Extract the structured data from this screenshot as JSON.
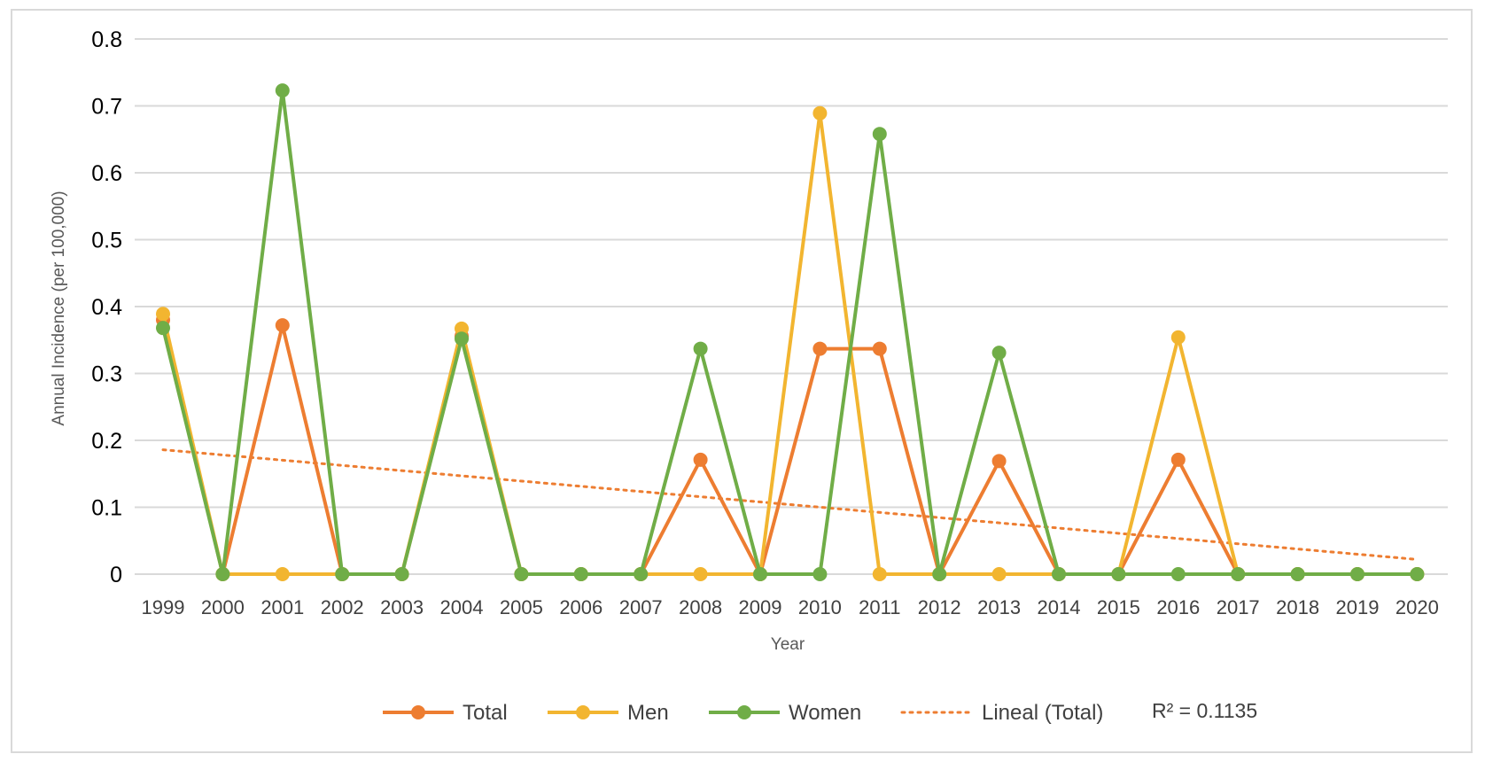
{
  "chart_data": {
    "type": "line",
    "title": "",
    "xlabel": "Year",
    "ylabel": "Annual Incidence (per 100,000)",
    "ylim": [
      0,
      0.8
    ],
    "yticks": [
      "0",
      "0.1",
      "0.2",
      "0.3",
      "0.4",
      "0.5",
      "0.6",
      "0.7",
      "0.8"
    ],
    "categories": [
      "1999",
      "2000",
      "2001",
      "2002",
      "2003",
      "2004",
      "2005",
      "2006",
      "2007",
      "2008",
      "2009",
      "2010",
      "2011",
      "2012",
      "2013",
      "2014",
      "2015",
      "2016",
      "2017",
      "2018",
      "2019",
      "2020"
    ],
    "grid": true,
    "legend_position": "bottom",
    "series": [
      {
        "name": "Total",
        "color": "#ED7D31",
        "values": [
          0.38,
          0,
          0.372,
          0,
          0,
          0.356,
          0,
          0,
          0,
          0.171,
          0,
          0.337,
          0.337,
          0,
          0.169,
          0,
          0,
          0.171,
          0,
          0,
          0,
          0
        ]
      },
      {
        "name": "Men",
        "color": "#F2B530",
        "values": [
          0.389,
          0,
          0,
          0,
          0,
          0.367,
          0,
          0,
          0,
          0,
          0,
          0.689,
          0,
          0,
          0,
          0,
          0,
          0.354,
          0,
          0,
          0,
          0
        ]
      },
      {
        "name": "Women",
        "color": "#70AD47",
        "values": [
          0.368,
          0,
          0.723,
          0,
          0,
          0.352,
          0,
          0,
          0,
          0.337,
          0,
          0,
          0.658,
          0,
          0.331,
          0,
          0,
          0,
          0,
          0,
          0,
          0
        ]
      }
    ],
    "trendline": {
      "name": "Lineal (Total)",
      "color": "#ED7D31",
      "style": "dotted",
      "start_value": 0.186,
      "end_value": 0.022
    },
    "r2_label": "R² = 0.1135"
  }
}
